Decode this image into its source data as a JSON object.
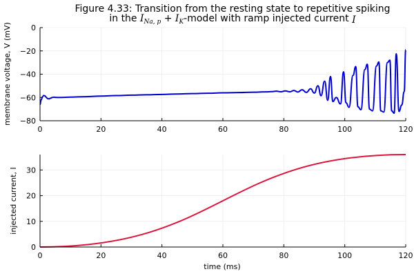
{
  "title": {
    "line1": "Figure 4.33: Transition from the resting state to repetitive spiking",
    "line2_pre": "in the ",
    "line2_math1": "I",
    "line2_sub1": "Na, p",
    "line2_plus": " + ",
    "line2_math2": "I",
    "line2_sub2": "K",
    "line2_mid": "-model with ramp injected current ",
    "line2_math3": "I"
  },
  "chart_data": [
    {
      "type": "line",
      "xlabel": "",
      "ylabel": "membrane voltage, V (mV)",
      "xlim": [
        0,
        120
      ],
      "ylim": [
        -80,
        0
      ],
      "xticks": [
        0,
        20,
        40,
        60,
        80,
        100,
        120
      ],
      "yticks": [
        -80,
        -60,
        -40,
        -20,
        0
      ],
      "grid": true,
      "series": [
        {
          "color": "#0000cd",
          "x": [
            0,
            0.4,
            0.8,
            1.2,
            1.6,
            2.0,
            2.5,
            3.0,
            3.5,
            4.0,
            4.5,
            5.0,
            5.5,
            6.0,
            7.0,
            8.0,
            10,
            15,
            20,
            25,
            30,
            35,
            40,
            45,
            50,
            55,
            60,
            65,
            70,
            74,
            76,
            77.5,
            79,
            80.5,
            82,
            83.3,
            84.6,
            86,
            87.4,
            88.8,
            90,
            91.2,
            92.2,
            93.4,
            94.4,
            95.3,
            96.1,
            97.2,
            98.6,
            99.6,
            100.4,
            101.4,
            102.7,
            103.6,
            104.3,
            105.3,
            106.6,
            107.4,
            108.1,
            109.1,
            110.4,
            111.2,
            111.8,
            112.8,
            114.0,
            114.8,
            115.4,
            116.2,
            116.9,
            117.8,
            118.7,
            119.5,
            120
          ],
          "values": [
            -66,
            -62,
            -59.5,
            -58.3,
            -58.6,
            -59.8,
            -61.0,
            -61.2,
            -60.6,
            -60.0,
            -59.8,
            -59.9,
            -60.0,
            -60.0,
            -60.0,
            -59.9,
            -59.7,
            -59.3,
            -58.8,
            -58.4,
            -58.0,
            -57.7,
            -57.4,
            -57.0,
            -56.7,
            -56.4,
            -56.0,
            -55.8,
            -55.5,
            -55.2,
            -55.0,
            -54.6,
            -55.1,
            -54.4,
            -55.1,
            -54.0,
            -55.3,
            -53.4,
            -55.6,
            -52.5,
            -56.2,
            -50.0,
            -58.5,
            -46.0,
            -62.5,
            -42.0,
            -63.5,
            -60.0,
            -65.5,
            -38.0,
            -64.5,
            -68.5,
            -41.0,
            -33.5,
            -68.0,
            -70.5,
            -36.0,
            -31.5,
            -70.0,
            -71.5,
            -33.0,
            -29.5,
            -71.5,
            -72.5,
            -30.0,
            -28.0,
            -71.5,
            -73.5,
            -22.5,
            -72.0,
            -66.5,
            -55.0,
            -19.0
          ]
        }
      ]
    },
    {
      "type": "line",
      "xlabel": "time (ms)",
      "ylabel": "injected current, I",
      "xlim": [
        0,
        120
      ],
      "ylim": [
        0,
        36
      ],
      "xticks": [
        0,
        20,
        40,
        60,
        80,
        100,
        120
      ],
      "yticks": [
        0,
        10,
        20,
        30
      ],
      "grid": true,
      "series": [
        {
          "color": "#dc143c",
          "x": [
            0,
            120
          ],
          "values": [
            0,
            36
          ]
        }
      ]
    }
  ]
}
